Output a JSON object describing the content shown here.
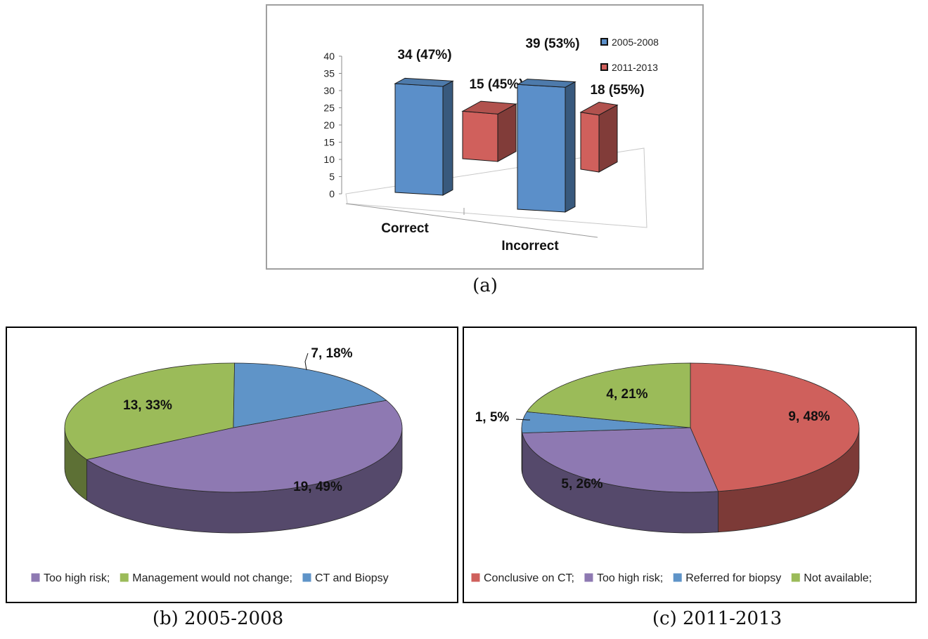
{
  "captions": {
    "a": "(a)",
    "b": "(b) 2005-2008",
    "c": "(c) 2011-2013"
  },
  "chart_data": [
    {
      "type": "bar",
      "categories": [
        "Correct",
        "Incorrect"
      ],
      "series": [
        {
          "name": "2005-2008",
          "values": [
            34,
            39
          ],
          "color": "#5b8fc9",
          "labels": [
            "34 (47%)",
            "39 (53%)"
          ]
        },
        {
          "name": "2011-2013",
          "values": [
            15,
            18
          ],
          "color": "#d0605c",
          "labels": [
            "15 (45%)",
            "18 (55%)"
          ]
        }
      ],
      "ylim": [
        0,
        40
      ],
      "yticks": [
        "40",
        "35",
        "30",
        "25",
        "20",
        "15",
        "10",
        "5",
        "0"
      ],
      "legend_placement": "top-right"
    },
    {
      "type": "pie",
      "slices": [
        {
          "name": "Too high risk;",
          "value": 19,
          "percent": 49,
          "label": "19, 49%",
          "color": "#8e79b2"
        },
        {
          "name": "Management would not change;",
          "value": 13,
          "percent": 33,
          "label": "13, 33%",
          "color": "#9bbb59"
        },
        {
          "name": "CT and Biopsy",
          "value": 7,
          "percent": 18,
          "label": "7, 18%",
          "color": "#5f94c8"
        }
      ],
      "legend_placement": "bottom"
    },
    {
      "type": "pie",
      "slices": [
        {
          "name": "Conclusive on CT;",
          "value": 9,
          "percent": 48,
          "label": "9, 48%",
          "color": "#cf605c"
        },
        {
          "name": "Too high risk;",
          "value": 5,
          "percent": 26,
          "label": "5, 26%",
          "color": "#8e79b2"
        },
        {
          "name": "Not available;",
          "value": 4,
          "percent": 21,
          "label": "4, 21%",
          "color": "#9bbb59"
        },
        {
          "name": "Referred for biopsy",
          "value": 1,
          "percent": 5,
          "label": "1, 5%",
          "color": "#5f94c8"
        }
      ],
      "legend_placement": "bottom"
    }
  ]
}
